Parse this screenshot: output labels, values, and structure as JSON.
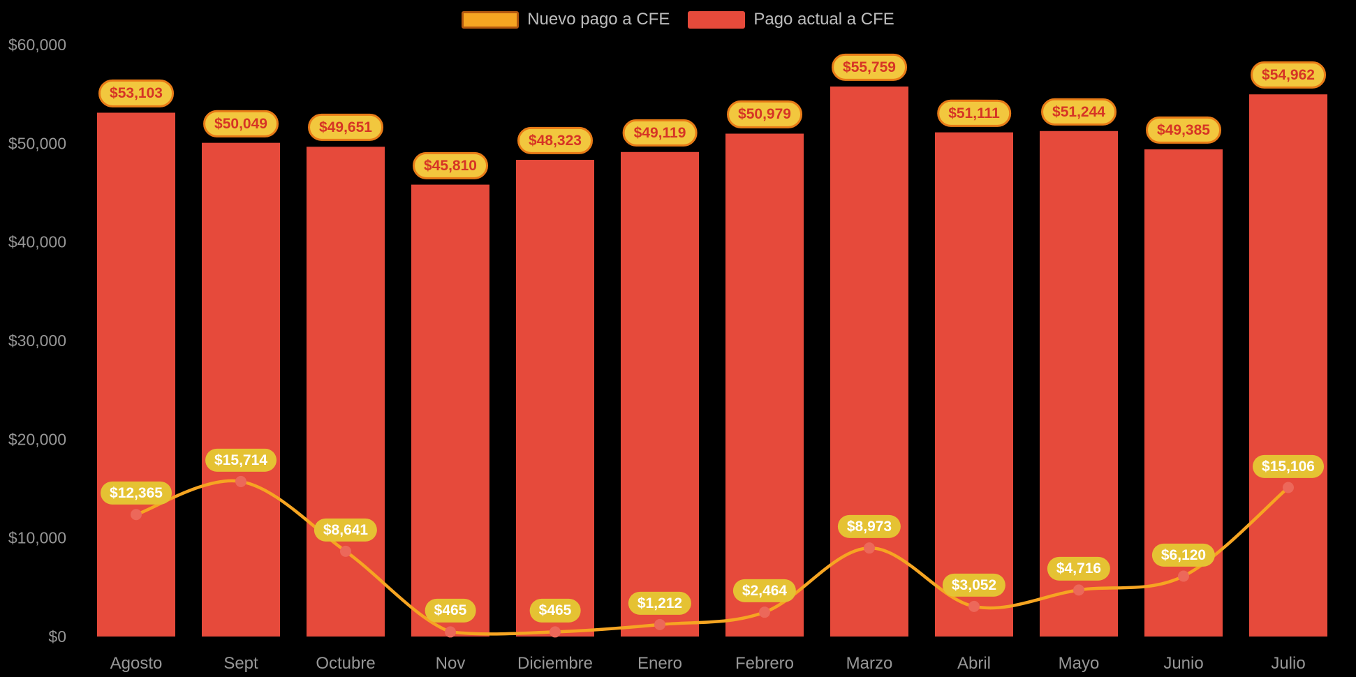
{
  "background": "#000000",
  "legend": {
    "items": [
      {
        "label": "Nuevo pago a CFE",
        "swatch_color": "#f6a522",
        "swatch_border": "#b4580f"
      },
      {
        "label": "Pago actual a CFE",
        "swatch_color": "#e64a3b",
        "swatch_border": "#e64a3b"
      }
    ],
    "text_color": "#bdbdbd"
  },
  "chart_data": {
    "type": "bar",
    "title": "",
    "xlabel": "",
    "ylabel": "",
    "categories": [
      "Agosto",
      "Sept",
      "Octubre",
      "Nov",
      "Diciembre",
      "Enero",
      "Febrero",
      "Marzo",
      "Abril",
      "Mayo",
      "Junio",
      "Julio"
    ],
    "series": [
      {
        "name": "Pago actual a CFE",
        "type": "bar",
        "color": "#e64a3b",
        "values": [
          53103,
          50049,
          49651,
          45810,
          48323,
          49119,
          50979,
          55759,
          51111,
          51244,
          49385,
          54962
        ],
        "labels": [
          "$53,103",
          "$50,049",
          "$49,651",
          "$45,810",
          "$48,323",
          "$49,119",
          "$50,979",
          "$55,759",
          "$51,111",
          "$51,244",
          "$49,385",
          "$54,962"
        ],
        "label_style": {
          "bg": "#f2c73e",
          "text": "#d63425",
          "border": "#e87b17"
        }
      },
      {
        "name": "Nuevo pago a CFE",
        "type": "line",
        "color": "#f6a522",
        "point_color": "#ec685a",
        "values": [
          12365,
          15714,
          8641,
          465,
          465,
          1212,
          2464,
          8973,
          3052,
          4716,
          6120,
          15106
        ],
        "labels": [
          "$12,365",
          "$15,714",
          "$8,641",
          "$465",
          "$465",
          "$1,212",
          "$2,464",
          "$8,973",
          "$3,052",
          "$4,716",
          "$6,120",
          "$15,106"
        ],
        "label_style": {
          "bg": "#e5c233",
          "text": "#ffffff"
        }
      }
    ],
    "ylim": [
      0,
      60000
    ],
    "yticks": [
      0,
      10000,
      20000,
      30000,
      40000,
      50000,
      60000
    ],
    "ytick_labels": [
      "$0",
      "$10,000",
      "$20,000",
      "$30,000",
      "$40,000",
      "$50,000",
      "$60,000"
    ],
    "axis_text_color": "#979797",
    "grid": false,
    "legend_position": "top-center"
  }
}
